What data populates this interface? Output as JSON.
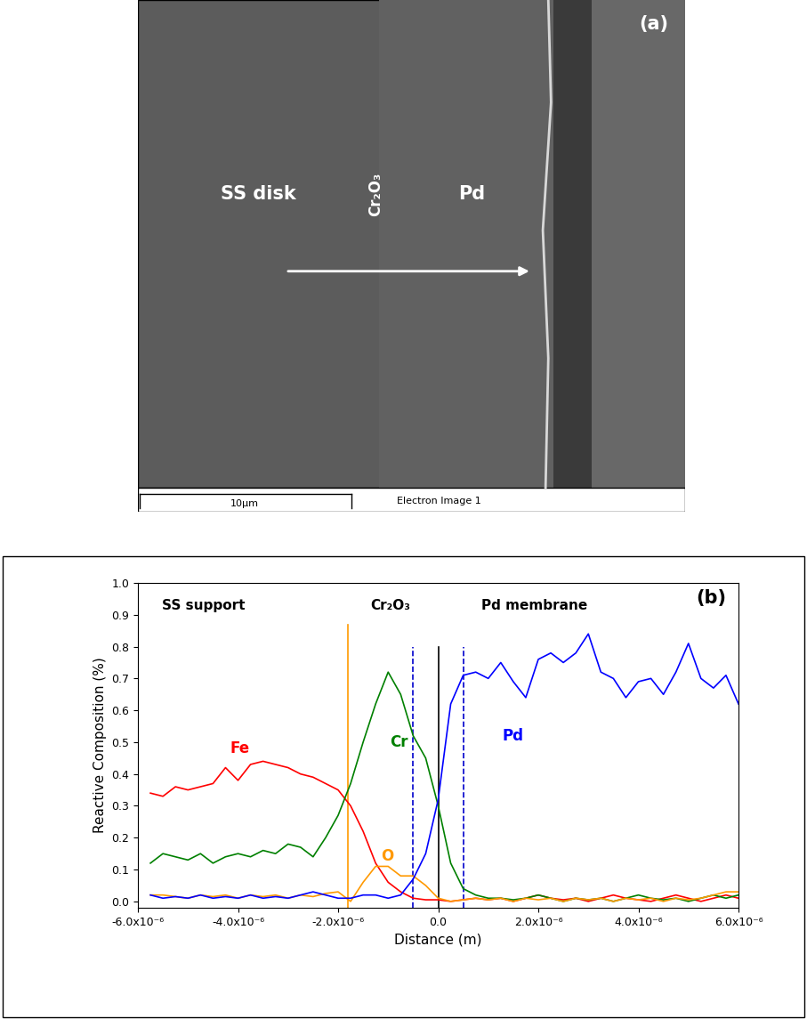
{
  "image": {
    "panel": "(a)",
    "regions": [
      "SS disk",
      "Cr₂O₃",
      "Pd"
    ],
    "scale_bar": "10µm",
    "caption": "Electron Image 1"
  },
  "chart_data": {
    "type": "line",
    "panel": "(b)",
    "xlabel": "Distance (m)",
    "ylabel": "Reactive Composition (%)",
    "regions": [
      "SS support",
      "Cr₂O₃",
      "Pd membrane"
    ],
    "x": [
      -5.75e-06,
      -5.5e-06,
      -5.25e-06,
      -5e-06,
      -4.75e-06,
      -4.5e-06,
      -4.25e-06,
      -4e-06,
      -3.75e-06,
      -3.5e-06,
      -3.25e-06,
      -3e-06,
      -2.75e-06,
      -2.5e-06,
      -2.25e-06,
      -2e-06,
      -1.75e-06,
      -1.5e-06,
      -1.25e-06,
      -1e-06,
      -7.5e-07,
      -5e-07,
      -2.5e-07,
      0.0,
      2.5e-07,
      5e-07,
      7.5e-07,
      1e-06,
      1.25e-06,
      1.5e-06,
      1.75e-06,
      2e-06,
      2.25e-06,
      2.5e-06,
      2.75e-06,
      3e-06,
      3.25e-06,
      3.5e-06,
      3.75e-06,
      4e-06,
      4.25e-06,
      4.5e-06,
      4.75e-06,
      5e-06,
      5.25e-06,
      5.5e-06,
      5.75e-06,
      6e-06
    ],
    "series": [
      {
        "name": "Fe",
        "color": "#ff0000",
        "values": [
          0.34,
          0.33,
          0.36,
          0.35,
          0.36,
          0.37,
          0.42,
          0.38,
          0.43,
          0.44,
          0.43,
          0.42,
          0.4,
          0.39,
          0.37,
          0.35,
          0.3,
          0.22,
          0.12,
          0.06,
          0.03,
          0.01,
          0.005,
          0.005,
          0.0,
          0.005,
          0.01,
          0.005,
          0.01,
          0.0,
          0.01,
          0.02,
          0.01,
          0.005,
          0.01,
          0.0,
          0.01,
          0.02,
          0.01,
          0.005,
          0.0,
          0.01,
          0.02,
          0.01,
          0.0,
          0.01,
          0.02,
          0.01
        ]
      },
      {
        "name": "Cr",
        "color": "#008000",
        "values": [
          0.12,
          0.15,
          0.14,
          0.13,
          0.15,
          0.12,
          0.14,
          0.15,
          0.14,
          0.16,
          0.15,
          0.18,
          0.17,
          0.14,
          0.2,
          0.27,
          0.37,
          0.5,
          0.62,
          0.72,
          0.65,
          0.52,
          0.45,
          0.3,
          0.12,
          0.04,
          0.02,
          0.01,
          0.01,
          0.005,
          0.01,
          0.02,
          0.01,
          0.0,
          0.01,
          0.005,
          0.01,
          0.0,
          0.01,
          0.02,
          0.01,
          0.005,
          0.01,
          0.0,
          0.01,
          0.02,
          0.01,
          0.02
        ]
      },
      {
        "name": "O",
        "color": "#ff9900",
        "values": [
          0.02,
          0.02,
          0.015,
          0.01,
          0.02,
          0.015,
          0.02,
          0.01,
          0.02,
          0.015,
          0.02,
          0.01,
          0.02,
          0.015,
          0.025,
          0.03,
          0.0,
          0.06,
          0.11,
          0.11,
          0.08,
          0.08,
          0.05,
          0.01,
          0.0,
          0.005,
          0.01,
          0.005,
          0.01,
          0.0,
          0.01,
          0.005,
          0.01,
          0.0,
          0.01,
          0.005,
          0.01,
          0.0,
          0.01,
          0.005,
          0.01,
          0.0,
          0.01,
          0.005,
          0.01,
          0.02,
          0.03,
          0.03
        ]
      },
      {
        "name": "Pd",
        "color": "#0000ff",
        "values": [
          0.02,
          0.01,
          0.015,
          0.01,
          0.02,
          0.01,
          0.015,
          0.01,
          0.02,
          0.01,
          0.015,
          0.01,
          0.02,
          0.03,
          0.02,
          0.01,
          0.01,
          0.02,
          0.02,
          0.01,
          0.02,
          0.07,
          0.15,
          0.32,
          0.62,
          0.71,
          0.72,
          0.7,
          0.75,
          0.69,
          0.64,
          0.76,
          0.78,
          0.75,
          0.78,
          0.84,
          0.72,
          0.7,
          0.64,
          0.69,
          0.7,
          0.65,
          0.72,
          0.81,
          0.7,
          0.67,
          0.71,
          0.62
        ]
      }
    ],
    "vertical_lines": [
      {
        "x": -1.8e-06,
        "y": [
          -0.02,
          0.87
        ],
        "color": "#ff9900",
        "line_style": "solid"
      },
      {
        "x": -5e-07,
        "y": [
          -0.02,
          0.8
        ],
        "color": "#0000cc",
        "line_style": "dashed"
      },
      {
        "x": 0.0,
        "y": [
          -0.02,
          0.8
        ],
        "color": "#000000",
        "line_style": "solid"
      },
      {
        "x": 5e-07,
        "y": [
          -0.02,
          0.8
        ],
        "color": "#0000cc",
        "line_style": "dashed"
      }
    ],
    "xlim": [
      -6e-06,
      6e-06
    ],
    "xticks": [
      {
        "value": -6e-06,
        "label": "-6.0x10⁻⁶"
      },
      {
        "value": -4e-06,
        "label": "-4.0x10⁻⁶"
      },
      {
        "value": -2e-06,
        "label": "-2.0x10⁻⁶"
      },
      {
        "value": 0.0,
        "label": "0.0"
      },
      {
        "value": 2e-06,
        "label": "2.0x10⁻⁶"
      },
      {
        "value": 4e-06,
        "label": "4.0x10⁻⁶"
      },
      {
        "value": 6e-06,
        "label": "6.0x10⁻⁶"
      }
    ],
    "ylim": [
      -0.02,
      1.0
    ],
    "yticks": [
      {
        "value": 0.0,
        "label": "0.0"
      },
      {
        "value": 0.1,
        "label": "0.1"
      },
      {
        "value": 0.2,
        "label": "0.2"
      },
      {
        "value": 0.3,
        "label": "0.3"
      },
      {
        "value": 0.4,
        "label": "0.4"
      },
      {
        "value": 0.5,
        "label": "0.5"
      },
      {
        "value": 0.6,
        "label": "0.6"
      },
      {
        "value": 0.7,
        "label": "0.7"
      },
      {
        "value": 0.8,
        "label": "0.8"
      },
      {
        "value": 0.9,
        "label": "0.9"
      },
      {
        "value": 1.0,
        "label": "1.0"
      }
    ],
    "grid": false
  }
}
